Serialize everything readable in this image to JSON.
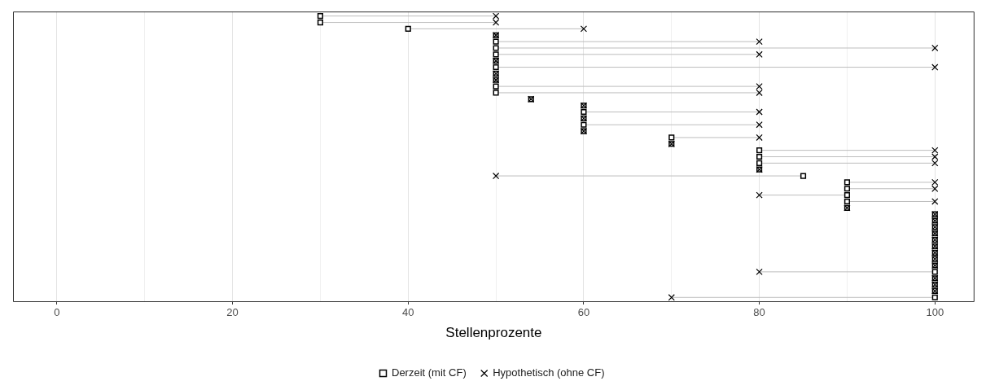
{
  "chart_data": {
    "type": "scatter",
    "orientation": "horizontal",
    "xlabel": "Stellenprozente",
    "categories": [
      null,
      null,
      null,
      null,
      null,
      null,
      null,
      null,
      null,
      null,
      null,
      null,
      null,
      null,
      null,
      null,
      null,
      null,
      null,
      null,
      null,
      null,
      null,
      null,
      null,
      null,
      null,
      null,
      null,
      null,
      null,
      null,
      null,
      null,
      null,
      null,
      null,
      null,
      null,
      null,
      null,
      null,
      null,
      null,
      null
    ],
    "series": [
      {
        "name": "Derzeit (mit CF)",
        "color": "#000000",
        "marker": "square",
        "values": [
          30,
          30,
          40,
          50,
          50,
          50,
          50,
          50,
          50,
          50,
          50,
          50,
          50,
          54,
          60,
          60,
          60,
          60,
          60,
          70,
          70,
          80,
          80,
          80,
          80,
          85,
          90,
          90,
          90,
          90,
          90,
          100,
          100,
          100,
          100,
          100,
          100,
          100,
          100,
          100,
          100,
          100,
          100,
          100,
          100
        ]
      },
      {
        "name": "Hypothetisch (ohne CF)",
        "color": "#000000",
        "marker": "cross",
        "values": [
          50,
          50,
          60,
          50,
          80,
          100,
          80,
          50,
          100,
          50,
          50,
          80,
          80,
          54,
          60,
          80,
          60,
          80,
          60,
          80,
          70,
          100,
          100,
          100,
          80,
          50,
          100,
          100,
          80,
          100,
          90,
          100,
          100,
          100,
          100,
          100,
          100,
          100,
          100,
          100,
          80,
          100,
          100,
          100,
          70
        ]
      }
    ],
    "xlim": [
      -5,
      104.5
    ],
    "xticks": [
      0,
      {
        "value": 10,
        "label": null
      },
      20,
      {
        "value": 30,
        "label": null
      },
      40,
      {
        "value": 50,
        "label": null
      },
      60,
      {
        "value": 70,
        "label": null
      },
      80,
      {
        "value": 90,
        "label": null
      },
      100
    ],
    "grid": "x",
    "legend": "bottom",
    "tick_labels": "x"
  }
}
